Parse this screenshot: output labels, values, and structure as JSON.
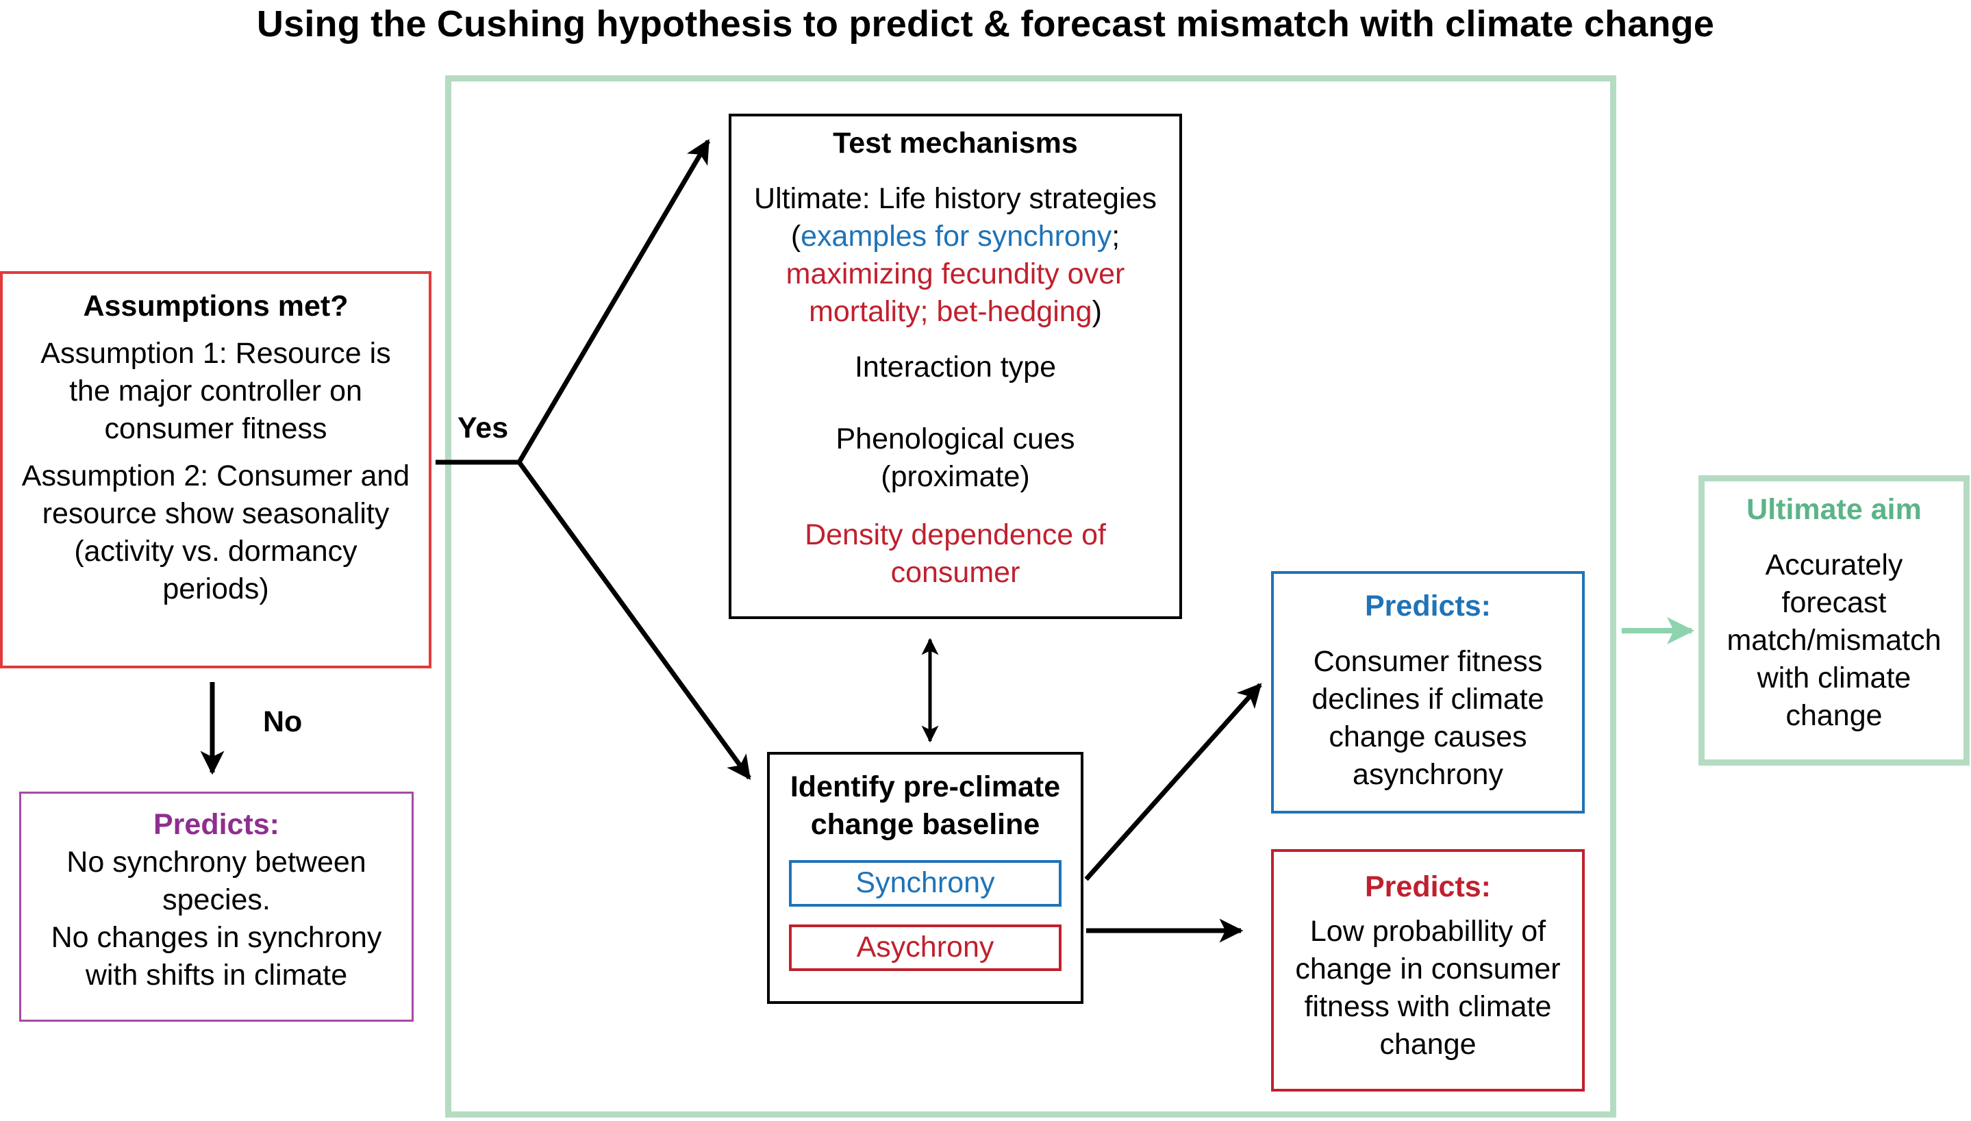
{
  "title": "Using the Cushing hypothesis to predict & forecast mismatch with climate change",
  "colors": {
    "blue": "#1f73b7",
    "red": "#c0202e",
    "purple": "#8e2e8f",
    "green": "#5bb487",
    "green_frame": "#b5dcc3"
  },
  "assumptions": {
    "heading": "Assumptions met?",
    "assumption1": "Assumption 1: Resource is the major controller on consumer fitness",
    "assumption2": "Assumption 2: Consumer and resource show seasonality (activity vs. dormancy periods)"
  },
  "branches": {
    "yes": "Yes",
    "no": "No"
  },
  "no_predicts": {
    "heading": "Predicts:",
    "line1": "No synchrony between species.",
    "line2": "No changes in synchrony with shifts in climate"
  },
  "mechanisms": {
    "heading": "Test mechanisms",
    "ultimate_prefix": "Ultimate: Life history strategies (",
    "ultimate_blue": "examples for synchrony",
    "ultimate_sep": "; ",
    "ultimate_red": "maximizing fecundity over mortality; bet-hedging",
    "ultimate_suffix": ")",
    "interaction": "Interaction type",
    "cues": "Phenological cues (proximate)",
    "density": "Density dependence of consumer"
  },
  "baseline": {
    "heading": "Identify pre-climate change baseline",
    "synchrony": "Synchrony",
    "asynchrony": "Asychrony"
  },
  "predict_sync": {
    "heading": "Predicts:",
    "text": "Consumer fitness declines if climate change causes asynchrony"
  },
  "predict_async": {
    "heading": "Predicts:",
    "text": "Low probabillity of change in consumer fitness with climate change"
  },
  "ultimate_aim": {
    "heading": "Ultimate aim",
    "text": "Accurately forecast match/mismatch with climate change"
  }
}
